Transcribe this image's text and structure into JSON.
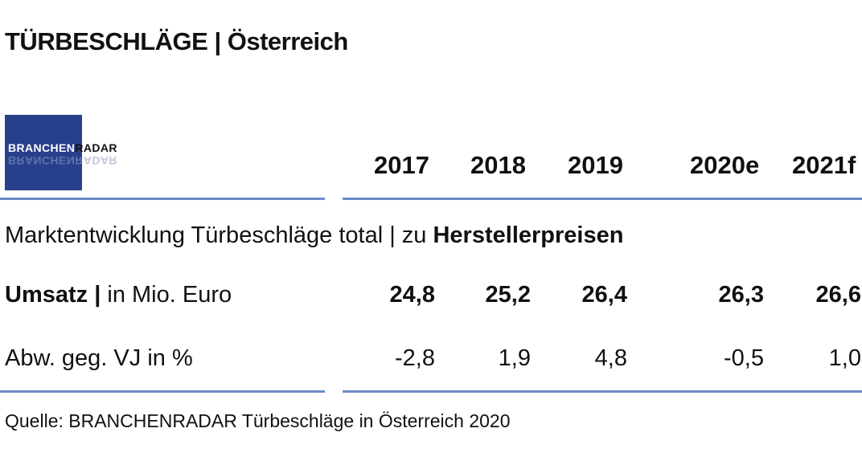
{
  "title": "TÜRBESCHLÄGE | Österreich",
  "logo": {
    "part1": "BRANCHEN",
    "part2": "RADAR",
    "ghost": "BRANCHENRADAR"
  },
  "colors": {
    "logo_bg": "#283f8c",
    "rule": "#6a8cc9"
  },
  "chart_data": {
    "type": "table",
    "columns": [
      "2017",
      "2018",
      "2019",
      "2020e",
      "2021f"
    ],
    "subtitle": {
      "normal": "Marktentwicklung Türbeschläge total | zu ",
      "bold": "Herstellerpreisen"
    },
    "rows": [
      {
        "label_bold": "Umsatz |",
        "label_normal": " in Mio. Euro",
        "values": [
          "24,8",
          "25,2",
          "26,4",
          "26,3",
          "26,6"
        ]
      },
      {
        "label_bold": "",
        "label_normal": "Abw. geg. VJ in %",
        "values": [
          "-2,8",
          "1,9",
          "4,8",
          "-0,5",
          "1,0"
        ]
      }
    ]
  },
  "source": "Quelle: BRANCHENRADAR Türbeschläge in Österreich 2020"
}
